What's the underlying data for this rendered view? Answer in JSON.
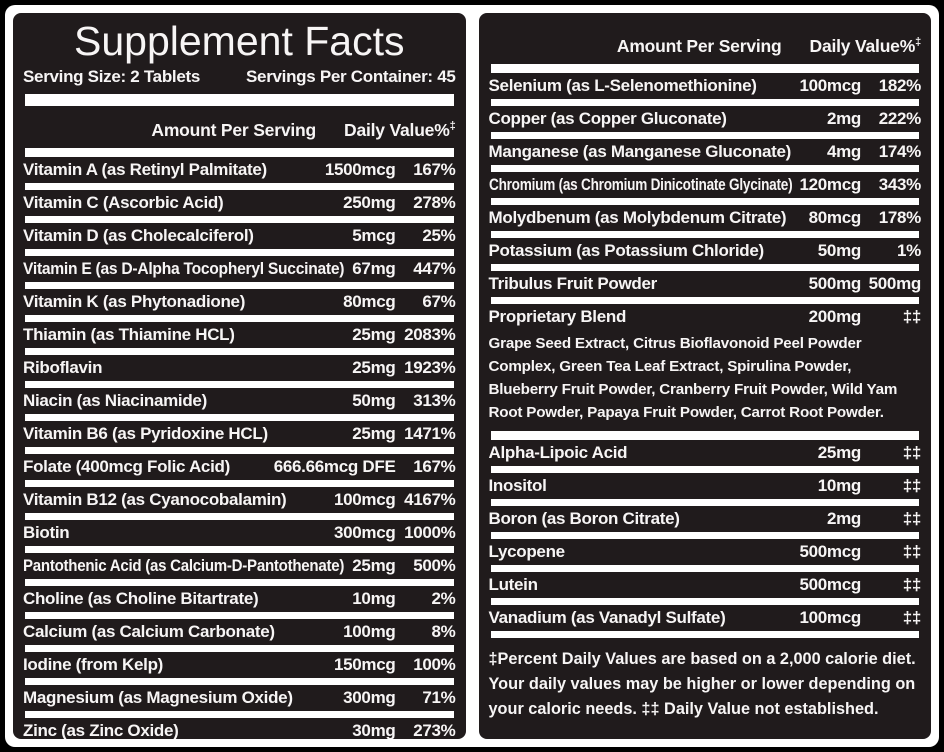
{
  "colors": {
    "panel_black": "#201b1c",
    "frame_white": "#ffffff",
    "outer_black": "#000000",
    "text_white": "#f7f5f5"
  },
  "title": "Supplement Facts",
  "serving": {
    "size": "Serving Size: 2 Tablets",
    "per_container": "Servings Per Container: 45"
  },
  "column_header": {
    "amount_label": "Amount Per Serving",
    "daily_value_label": "Daily Value%",
    "footnote_marker": "‡"
  },
  "left_column": {
    "rows": [
      {
        "name": "Vitamin A (as Retinyl Palmitate)",
        "amount": "1500mcg",
        "dv": "167%"
      },
      {
        "name": "Vitamin C (Ascorbic Acid)",
        "amount": "250mg",
        "dv": "278%"
      },
      {
        "name": "Vitamin D (as Cholecalciferol)",
        "amount": "5mcg",
        "dv": "25%"
      },
      {
        "name": "Vitamin E (as D-Alpha Tocopheryl Succinate)",
        "amount": "67mg",
        "dv": "447%"
      },
      {
        "name": "Vitamin K (as Phytonadione)",
        "amount": "80mcg",
        "dv": "67%"
      },
      {
        "name": "Thiamin (as Thiamine HCL)",
        "amount": "25mg",
        "dv": "2083%"
      },
      {
        "name": "Riboflavin",
        "amount": "25mg",
        "dv": "1923%"
      },
      {
        "name": "Niacin (as Niacinamide)",
        "amount": "50mg",
        "dv": "313%"
      },
      {
        "name": "Vitamin B6 (as Pyridoxine HCL)",
        "amount": "25mg",
        "dv": "1471%"
      },
      {
        "name": "Folate (400mcg Folic Acid)",
        "amount": "666.66mcg DFE",
        "dv": "167%"
      },
      {
        "name": "Vitamin B12 (as Cyanocobalamin)",
        "amount": "100mcg",
        "dv": "4167%"
      },
      {
        "name": "Biotin",
        "amount": "300mcg",
        "dv": "1000%"
      },
      {
        "name": "Pantothenic Acid (as Calcium-D-Pantothenate)",
        "amount": "25mg",
        "dv": "500%"
      },
      {
        "name": "Choline (as Choline Bitartrate)",
        "amount": "10mg",
        "dv": "2%"
      },
      {
        "name": "Calcium (as Calcium Carbonate)",
        "amount": "100mg",
        "dv": "8%"
      },
      {
        "name": "Iodine (from Kelp)",
        "amount": "150mcg",
        "dv": "100%"
      },
      {
        "name": "Magnesium (as Magnesium Oxide)",
        "amount": "300mg",
        "dv": "71%"
      },
      {
        "name": "Zinc (as Zinc Oxide)",
        "amount": "30mg",
        "dv": "273%"
      }
    ]
  },
  "right_column": {
    "rows_top": [
      {
        "name": "Selenium (as L-Selenomethionine)",
        "amount": "100mcg",
        "dv": "182%"
      },
      {
        "name": "Copper (as Copper Gluconate)",
        "amount": "2mg",
        "dv": "222%"
      },
      {
        "name": "Manganese (as Manganese Gluconate)",
        "amount": "4mg",
        "dv": "174%"
      },
      {
        "name": "Chromium (as Chromium Dinicotinate Glycinate)",
        "amount": "120mcg",
        "dv": "343%"
      },
      {
        "name": "Molydbenum (as Molybdenum Citrate)",
        "amount": "80mcg",
        "dv": "178%"
      },
      {
        "name": "Potassium (as Potassium Chloride)",
        "amount": "50mg",
        "dv": "1%"
      },
      {
        "name": "Tribulus Fruit Powder",
        "amount": "500mg",
        "dv": "500mg"
      }
    ],
    "proprietary_blend": {
      "name": "Proprietary Blend",
      "amount": "200mg",
      "dv": "‡‡",
      "ingredients": "Grape Seed Extract, Citrus Bioflavonoid Peel Powder Complex, Green Tea Leaf Extract, Spirulina Powder, Blueberry Fruit Powder, Cranberry Fruit Powder, Wild Yam Root Powder, Papaya Fruit Powder, Carrot Root Powder."
    },
    "rows_bottom": [
      {
        "name": "Alpha-Lipoic Acid",
        "amount": "25mg",
        "dv": "‡‡"
      },
      {
        "name": "Inositol",
        "amount": "10mg",
        "dv": "‡‡"
      },
      {
        "name": "Boron (as Boron Citrate)",
        "amount": "2mg",
        "dv": "‡‡"
      },
      {
        "name": "Lycopene",
        "amount": "500mcg",
        "dv": "‡‡"
      },
      {
        "name": "Lutein",
        "amount": "500mcg",
        "dv": "‡‡"
      },
      {
        "name": "Vanadium (as Vanadyl Sulfate)",
        "amount": "100mcg",
        "dv": "‡‡"
      }
    ],
    "footnote": "‡Percent Daily Values are based on a 2,000 calorie diet. Your daily values may be higher or lower depending on your caloric needs. ‡‡ Daily Value not established."
  }
}
